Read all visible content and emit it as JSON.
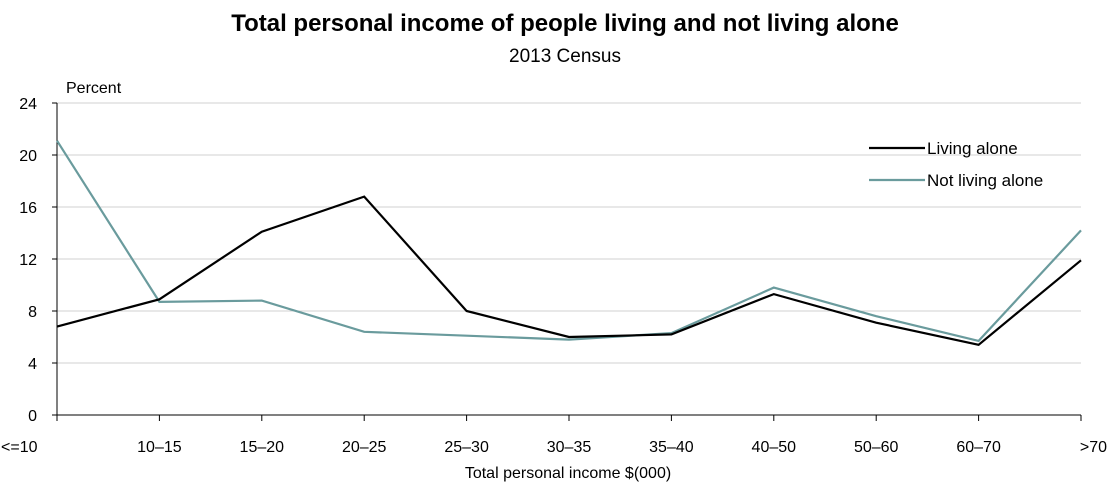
{
  "chart_data": {
    "type": "line",
    "title": "Total personal income of people living and not living alone",
    "subtitle": "2013 Census",
    "xlabel": "Total personal income $(000)",
    "ylabel": "Percent",
    "categories": [
      "<=10",
      "10–15",
      "15–20",
      "20–25",
      "25–30",
      "30–35",
      "35–40",
      "40–50",
      "50–60",
      "60–70",
      ">70"
    ],
    "ylim": [
      0,
      24
    ],
    "yticks": [
      0,
      4,
      8,
      12,
      16,
      20,
      24
    ],
    "grid": true,
    "legend_position": "top-right",
    "series": [
      {
        "name": "Living alone",
        "color": "#000000",
        "values": [
          6.8,
          8.9,
          14.1,
          16.8,
          8.0,
          6.0,
          6.2,
          9.3,
          7.1,
          5.4,
          11.9
        ]
      },
      {
        "name": "Not living alone",
        "color": "#6a9b9d",
        "values": [
          21.1,
          8.7,
          8.8,
          6.4,
          6.1,
          5.8,
          6.3,
          9.8,
          7.6,
          5.7,
          14.2
        ]
      }
    ]
  }
}
